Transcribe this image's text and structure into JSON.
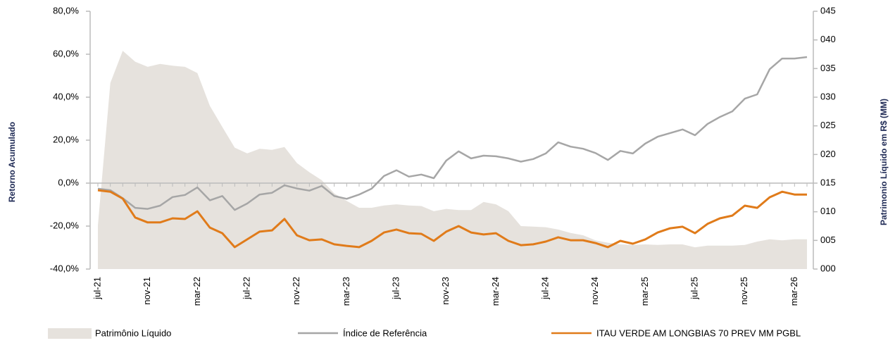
{
  "chart_data": {
    "type": "line",
    "y_label": "Retorno Acumulado",
    "y2_label": "Patrimonio Líquido em R$ (MM)",
    "categories": [
      "jul-21",
      null,
      null,
      null,
      "nov-21",
      null,
      null,
      null,
      "mar-22",
      null,
      null,
      null,
      "jul-22",
      null,
      null,
      null,
      "nov-22",
      null,
      null,
      null,
      "mar-23",
      null,
      null,
      null,
      "jul-23",
      null,
      null,
      null,
      "nov-23",
      null,
      null,
      null,
      "mar-24",
      null,
      null,
      null,
      "jul-24",
      null,
      null,
      null,
      "nov-24",
      null,
      null,
      null,
      "mar-25",
      null,
      null,
      null,
      "jul-25",
      null,
      null,
      null,
      "nov-25",
      null,
      null,
      null,
      "mar-26",
      null
    ],
    "ylim": [
      -40,
      80
    ],
    "yticks": [
      {
        "value": -40,
        "label": "-40,0%"
      },
      {
        "value": -20,
        "label": "-20,0%"
      },
      {
        "value": 0,
        "label": "0,0%"
      },
      {
        "value": 20,
        "label": "20,0%"
      },
      {
        "value": 40,
        "label": "40,0%"
      },
      {
        "value": 60,
        "label": "60,0%"
      },
      {
        "value": 80,
        "label": "80,0%"
      }
    ],
    "y2lim": [
      0,
      45
    ],
    "y2ticks": [
      {
        "value": 0,
        "label": "000"
      },
      {
        "value": 5,
        "label": "005"
      },
      {
        "value": 10,
        "label": "010"
      },
      {
        "value": 15,
        "label": "015"
      },
      {
        "value": 20,
        "label": "020"
      },
      {
        "value": 25,
        "label": "025"
      },
      {
        "value": 30,
        "label": "030"
      },
      {
        "value": 35,
        "label": "035"
      },
      {
        "value": 40,
        "label": "040"
      },
      {
        "value": 45,
        "label": "045"
      }
    ],
    "series": [
      {
        "name": "Patrimônio Líquido",
        "type": "area",
        "axis": "y2",
        "color": "#e6e2dd",
        "values": [
          7.6,
          32.5,
          38.1,
          36.2,
          35.3,
          35.8,
          35.5,
          35.3,
          34.2,
          28.5,
          24.8,
          21.2,
          20.2,
          21,
          20.8,
          21.3,
          18.5,
          16.9,
          15.5,
          13.2,
          11.9,
          10.7,
          10.7,
          11.1,
          11.3,
          11.1,
          11,
          10.1,
          10.5,
          10.3,
          10.3,
          11.7,
          11.3,
          10.1,
          7.5,
          7.4,
          7.3,
          6.9,
          6.3,
          5.9,
          5,
          4.6,
          4.3,
          4.2,
          4.3,
          4.2,
          4.3,
          4.3,
          3.8,
          4.1,
          4.1,
          4.1,
          4.2,
          4.8,
          5.2,
          5,
          5.2,
          5.2
        ]
      },
      {
        "name": "Índice de Referência",
        "type": "line",
        "color": "#a6a6a6",
        "values": [
          -2.6,
          -3.3,
          -7,
          -11.5,
          -12,
          -10.5,
          -6.5,
          -5.5,
          -2,
          -8,
          -6,
          -12.5,
          -9.5,
          -5.3,
          -4.5,
          -1,
          -2.5,
          -3.5,
          -1.3,
          -6,
          -7.3,
          -5.3,
          -2.6,
          3.3,
          6,
          3,
          4,
          2.3,
          10.5,
          14.8,
          11.5,
          12.8,
          12.5,
          11.5,
          10,
          11.2,
          13.8,
          19,
          17,
          16,
          14,
          10.8,
          15,
          13.8,
          18.4,
          21.6,
          23.3,
          25,
          22.3,
          27.5,
          30.8,
          33.4,
          39.3,
          41.3,
          53,
          58,
          58,
          58.7
        ]
      },
      {
        "name": "ITAU VERDE AM LONGBIAS 70 PREV MM PGBL",
        "type": "line",
        "color": "#e07b1a",
        "values": [
          -3.3,
          -4,
          -7.2,
          -16,
          -18.3,
          -18.3,
          -16.4,
          -16.7,
          -13.1,
          -20.7,
          -23.3,
          -29.8,
          -26.2,
          -22.6,
          -22,
          -16.7,
          -24.3,
          -26.6,
          -26.2,
          -28.5,
          -29.2,
          -29.8,
          -26.9,
          -23,
          -21.6,
          -23.3,
          -23.6,
          -26.9,
          -22.6,
          -20,
          -23,
          -23.9,
          -23.3,
          -26.9,
          -28.9,
          -28.5,
          -27.2,
          -25.2,
          -26.6,
          -26.6,
          -27.9,
          -29.8,
          -26.9,
          -28.2,
          -26.2,
          -23,
          -21,
          -20.3,
          -23.3,
          -19,
          -16.4,
          -15.1,
          -10.5,
          -11.5,
          -6.6,
          -4,
          -5.3,
          -5.3
        ]
      }
    ]
  }
}
